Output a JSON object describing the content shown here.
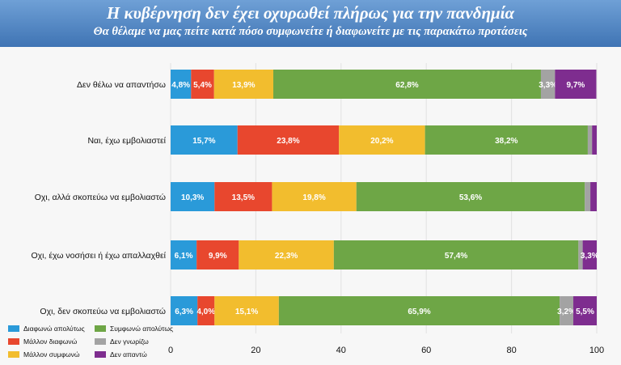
{
  "header": {
    "title": "Η κυβέρνηση δεν έχει οχυρωθεί πλήρως για την πανδημία",
    "subtitle": "Θα θέλαμε να μας πείτε κατά πόσο συμφωνείτε ή διαφωνείτε με τις παρακάτω προτάσεις"
  },
  "colors": {
    "diafono_apolytos": "#2a9ad9",
    "mallon_diafono": "#e8472e",
    "mallon_symfono": "#f2bd2e",
    "symfono_apolytos": "#6ea646",
    "den_gnorizo": "#a3a3a3",
    "den_apanto": "#7e2d8f"
  },
  "chart_data": {
    "type": "bar",
    "orientation": "horizontal",
    "stacked": true,
    "title": "Η κυβέρνηση δεν έχει οχυρωθεί πλήρως για την πανδημία",
    "subtitle": "Θα θέλαμε να μας πείτε κατά πόσο συμφωνείτε ή διαφωνείτε με τις παρακάτω προτάσεις",
    "xlim": [
      0,
      100
    ],
    "xticks": [
      "0",
      "20",
      "40",
      "60",
      "80",
      "100"
    ],
    "xlabel": "",
    "ylabel": "",
    "legend_position": "bottom-left",
    "categories": [
      "Δεν θέλω να απαντήσω",
      "Ναι, έχω εμβολιαστεί",
      "Οχι, αλλά σκοπεύω να εμβολιαστώ",
      "Οχι, έχω νοσήσει ή έχω απαλλαχθεί",
      "Οχι, δεν σκοπεύω να εμβολιαστώ"
    ],
    "series": [
      {
        "name": "Διαφωνώ απολύτως",
        "color_key": "diafono_apolytos",
        "values": [
          4.8,
          15.7,
          10.3,
          6.1,
          6.3
        ],
        "labels": [
          "4,8%",
          "15,7%",
          "10,3%",
          "6,1%",
          "6,3%"
        ]
      },
      {
        "name": "Μάλλον διαφωνώ",
        "color_key": "mallon_diafono",
        "values": [
          5.4,
          23.8,
          13.5,
          9.9,
          4.0
        ],
        "labels": [
          "5,4%",
          "23,8%",
          "13,5%",
          "9,9%",
          "4,0%"
        ]
      },
      {
        "name": "Μάλλον συμφωνώ",
        "color_key": "mallon_symfono",
        "values": [
          13.9,
          20.2,
          19.8,
          22.3,
          15.1
        ],
        "labels": [
          "13,9%",
          "20,2%",
          "19,8%",
          "22,3%",
          "15,1%"
        ]
      },
      {
        "name": "Συμφωνώ απολύτως",
        "color_key": "symfono_apolytos",
        "values": [
          62.8,
          38.2,
          53.6,
          57.4,
          65.9
        ],
        "labels": [
          "62,8%",
          "38,2%",
          "53,6%",
          "57,4%",
          "65,9%"
        ]
      },
      {
        "name": "Δεν γνωρίζω",
        "color_key": "den_gnorizo",
        "values": [
          3.3,
          1.0,
          1.3,
          1.0,
          3.2
        ],
        "labels": [
          "3,3%",
          "",
          "",
          "",
          "3,2%"
        ]
      },
      {
        "name": "Δεν απαντώ",
        "color_key": "den_apanto",
        "values": [
          9.7,
          1.1,
          1.5,
          3.3,
          5.5
        ],
        "labels": [
          "9,7%",
          "",
          "",
          "3,3%",
          "5,5%"
        ]
      }
    ]
  },
  "legend": [
    {
      "label": "Διαφωνώ απολύτως",
      "color_key": "diafono_apolytos"
    },
    {
      "label": "Συμφωνώ απολύτως",
      "color_key": "symfono_apolytos"
    },
    {
      "label": "Μάλλον διαφωνώ",
      "color_key": "mallon_diafono"
    },
    {
      "label": "Δεν γνωρίζω",
      "color_key": "den_gnorizo"
    },
    {
      "label": "Μάλλον συμφωνώ",
      "color_key": "mallon_symfono"
    },
    {
      "label": "Δεν απαντώ",
      "color_key": "den_apanto"
    }
  ]
}
